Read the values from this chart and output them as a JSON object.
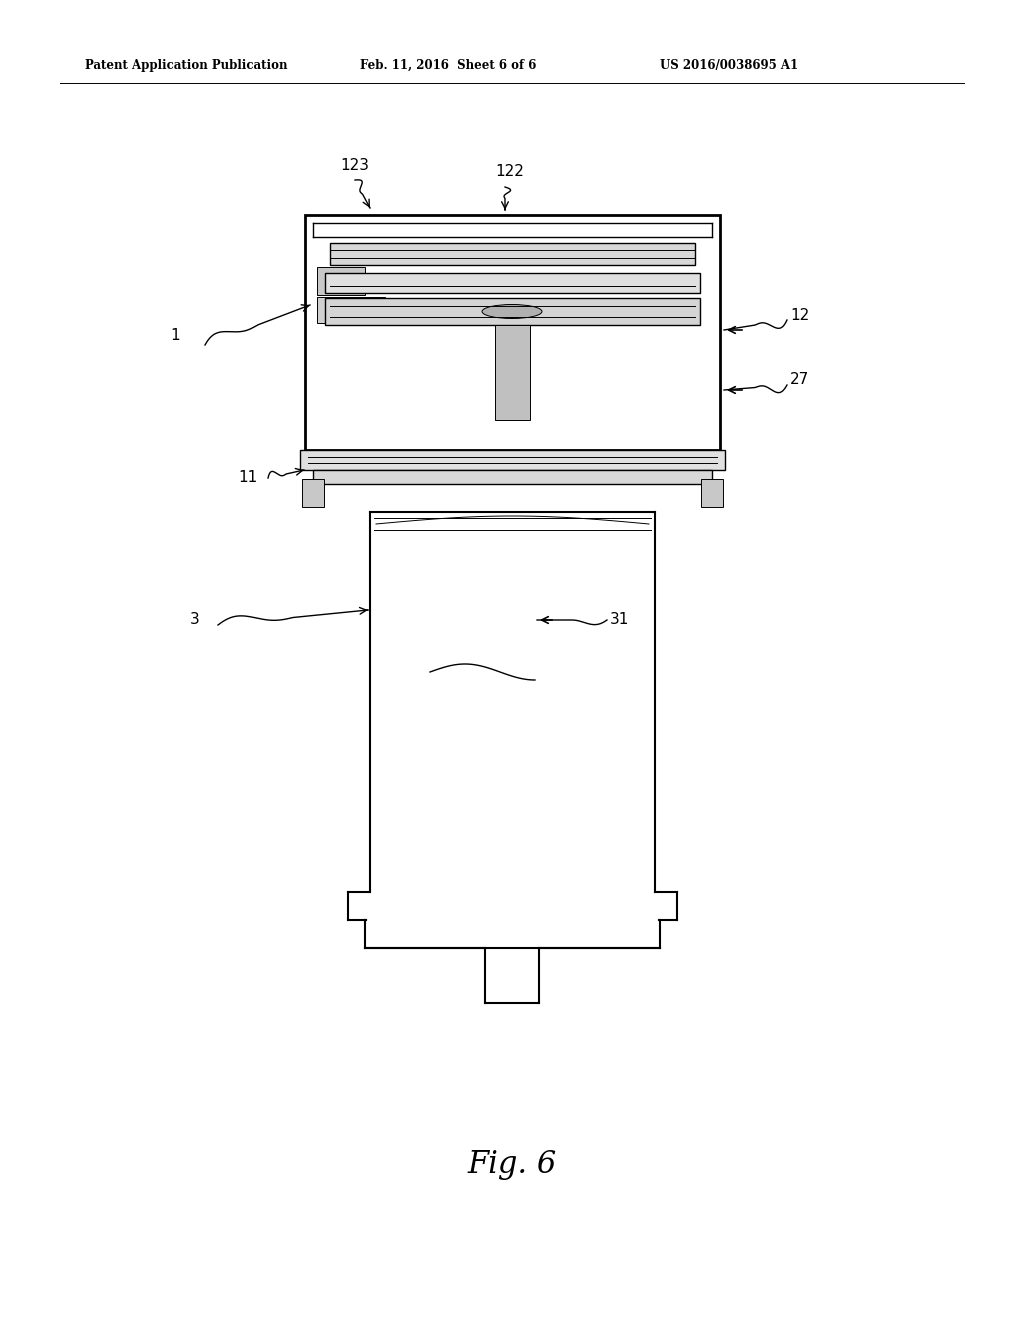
{
  "bg_color": "#ffffff",
  "title_left": "Patent Application Publication",
  "title_mid": "Feb. 11, 2016  Sheet 6 of 6",
  "title_right": "US 2016/0038695 A1",
  "fig_label": "Fig. 6"
}
